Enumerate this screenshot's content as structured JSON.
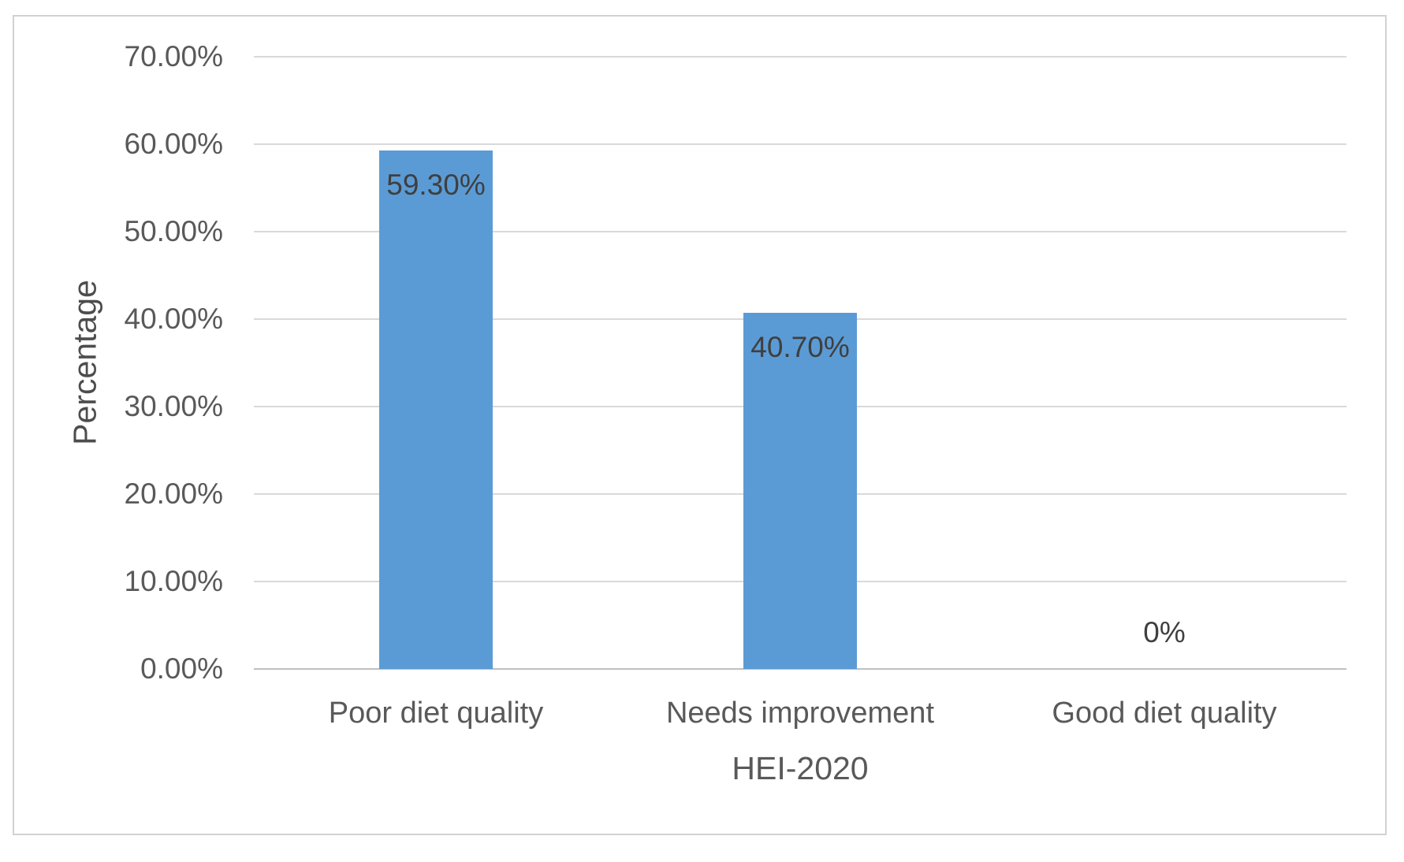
{
  "figure": {
    "background_color": "#ffffff",
    "frame_border_color": "#d2d2d2"
  },
  "chart_data": {
    "type": "bar",
    "title": "",
    "categories": [
      "Poor diet quality",
      "Needs improvement",
      "Good diet quality"
    ],
    "values": [
      59.3,
      40.7,
      0
    ],
    "data_labels": [
      "59.30%",
      "40.70%",
      "0%"
    ],
    "xlabel": "HEI-2020",
    "ylabel": "Percentage",
    "ylim": [
      0,
      70
    ],
    "ytick_values": [
      0,
      10,
      20,
      30,
      40,
      50,
      60,
      70
    ],
    "ytick_labels": [
      "0.00%",
      "10.00%",
      "20.00%",
      "30.00%",
      "40.00%",
      "50.00%",
      "60.00%",
      "70.00%"
    ],
    "grid": true,
    "legend": false,
    "colors": {
      "bar": "#5b9bd5",
      "gridline": "#d9d9d9",
      "axis_line": "#bfbfbf",
      "tick_label": "#595959",
      "data_label": "#3f3f3f"
    }
  }
}
